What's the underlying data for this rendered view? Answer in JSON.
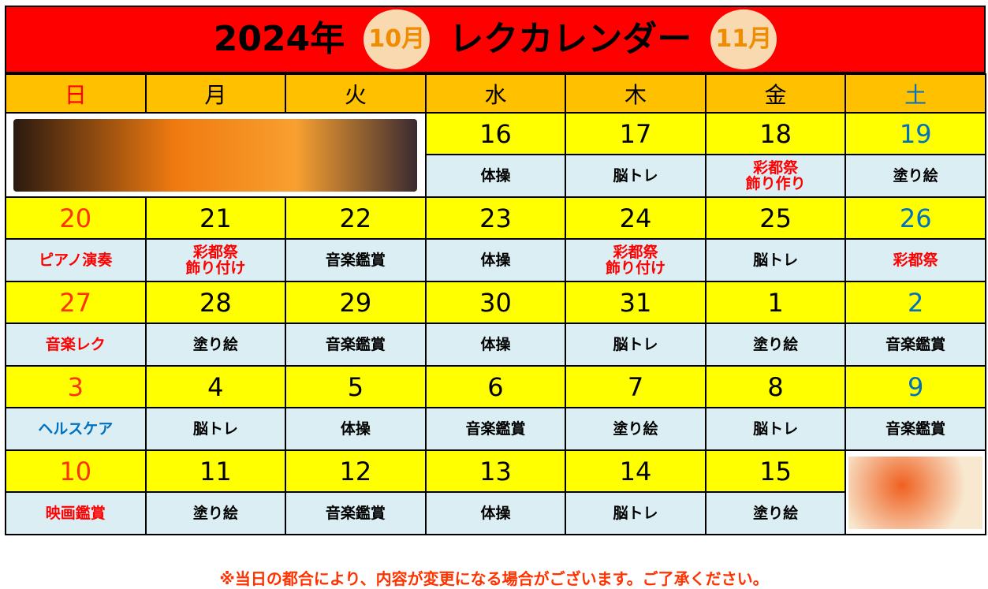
{
  "title": {
    "year": "2024年",
    "month1": "10月",
    "main": "レクカレンダー",
    "month2": "11月"
  },
  "weekdays": [
    "日",
    "月",
    "火",
    "水",
    "木",
    "金",
    "土"
  ],
  "weeks": [
    {
      "days": [
        null,
        null,
        null,
        {
          "date": "16",
          "event": "体操"
        },
        {
          "date": "17",
          "event": "脳トレ"
        },
        {
          "date": "18",
          "event": "彩都祭\n飾り作り",
          "color": "red"
        },
        {
          "date": "19",
          "event": "塗り絵"
        }
      ]
    },
    {
      "days": [
        {
          "date": "20",
          "event": "ピアノ演奏",
          "color": "red"
        },
        {
          "date": "21",
          "event": "彩都祭\n飾り付け",
          "color": "red"
        },
        {
          "date": "22",
          "event": "音楽鑑賞"
        },
        {
          "date": "23",
          "event": "体操"
        },
        {
          "date": "24",
          "event": "彩都祭\n飾り付け",
          "color": "red"
        },
        {
          "date": "25",
          "event": "脳トレ"
        },
        {
          "date": "26",
          "event": "彩都祭",
          "color": "red"
        }
      ]
    },
    {
      "days": [
        {
          "date": "27",
          "event": "音楽レク",
          "color": "red"
        },
        {
          "date": "28",
          "event": "塗り絵"
        },
        {
          "date": "29",
          "event": "音楽鑑賞"
        },
        {
          "date": "30",
          "event": "体操"
        },
        {
          "date": "31",
          "event": "脳トレ"
        },
        {
          "date": "1",
          "event": "塗り絵"
        },
        {
          "date": "2",
          "event": "音楽鑑賞"
        }
      ]
    },
    {
      "days": [
        {
          "date": "3",
          "event": "ヘルスケア",
          "color": "blue"
        },
        {
          "date": "4",
          "event": "脳トレ"
        },
        {
          "date": "5",
          "event": "体操"
        },
        {
          "date": "6",
          "event": "音楽鑑賞"
        },
        {
          "date": "7",
          "event": "塗り絵"
        },
        {
          "date": "8",
          "event": "脳トレ"
        },
        {
          "date": "9",
          "event": "音楽鑑賞"
        }
      ]
    },
    {
      "days": [
        {
          "date": "10",
          "event": "映画鑑賞",
          "color": "red"
        },
        {
          "date": "11",
          "event": "塗り絵"
        },
        {
          "date": "12",
          "event": "音楽鑑賞"
        },
        {
          "date": "13",
          "event": "体操"
        },
        {
          "date": "14",
          "event": "脳トレ"
        },
        {
          "date": "15",
          "event": "塗り絵"
        },
        null
      ]
    }
  ],
  "images": {
    "first_week": "halloween-illustration",
    "last_week": "autumn-squirrel-illustration"
  },
  "note": "※当日の都合により、内容が変更になる場合がございます。ご了承ください。",
  "colors": {
    "title_bg": "#ff0000",
    "header_bg": "#ffc000",
    "date_bg": "#ffff00",
    "event_bg": "#daeef3",
    "sunday": "#ff3300",
    "saturday": "#0070c0"
  }
}
